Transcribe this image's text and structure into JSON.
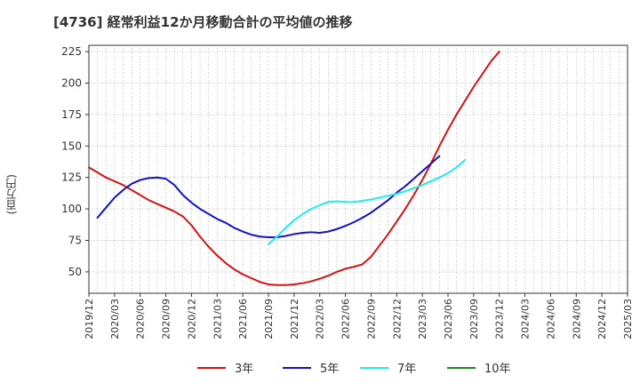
{
  "chart_data": {
    "type": "line",
    "title": "[4736]  経常利益12か月移動合計の平均値の推移",
    "ylabel": "(百万円)",
    "xlabel": "",
    "ylim": [
      33,
      230
    ],
    "yticks": [
      50,
      75,
      100,
      125,
      150,
      175,
      200,
      225
    ],
    "grid": true,
    "legend_position": "bottom",
    "x_ticks": [
      "2019/12",
      "2020/03",
      "2020/06",
      "2020/09",
      "2020/12",
      "2021/03",
      "2021/06",
      "2021/09",
      "2021/12",
      "2022/03",
      "2022/06",
      "2022/09",
      "2022/12",
      "2023/03",
      "2023/06",
      "2023/09",
      "2023/12",
      "2024/03",
      "2024/06",
      "2024/09",
      "2024/12",
      "2025/03"
    ],
    "series": [
      {
        "name": "3年",
        "color": "#dd1111",
        "start_index": 0,
        "values": [
          133,
          129,
          125,
          122,
          119,
          115,
          111,
          107,
          104,
          101,
          98,
          94,
          87,
          78,
          70,
          63,
          57,
          52,
          48,
          45,
          42,
          40,
          39.5,
          39.5,
          40,
          41,
          42.5,
          44.5,
          47,
          50,
          52.5,
          54,
          56,
          62,
          71,
          80,
          90,
          100,
          111,
          123,
          136,
          150,
          163,
          175,
          186,
          197,
          207,
          217,
          225
        ]
      },
      {
        "name": "5年",
        "color": "#1111cc",
        "start_index": 1,
        "values": [
          93,
          101,
          109,
          115,
          120,
          123,
          124.5,
          125,
          124,
          119,
          111,
          105,
          100,
          96,
          92,
          89,
          85,
          82,
          79.5,
          78,
          77.5,
          77.5,
          78.5,
          80,
          81,
          81.5,
          81,
          82,
          84,
          86.5,
          89.5,
          93,
          97,
          102,
          107,
          113,
          118,
          124,
          130,
          136,
          142
        ]
      },
      {
        "name": "7年",
        "color": "#22eeee",
        "start_index": 21,
        "values": [
          72,
          78,
          85,
          91,
          96,
          100,
          103,
          105.5,
          106,
          105.5,
          105.5,
          106.5,
          107.5,
          109,
          110.5,
          112,
          114,
          116.5,
          119,
          122,
          125,
          128.5,
          133,
          139
        ]
      },
      {
        "name": "10年",
        "color": "#228822",
        "start_index": 0,
        "values": []
      }
    ]
  }
}
